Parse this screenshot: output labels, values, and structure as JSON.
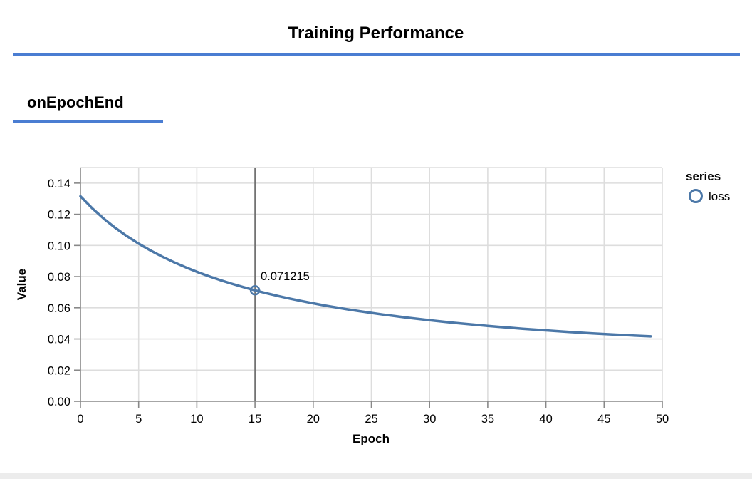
{
  "page": {
    "title": "Training Performance",
    "section_heading": "onEpochEnd"
  },
  "colors": {
    "accent_blue": "#4a7dd2",
    "series_blue": "#4c78a8",
    "grid": "#dddddd",
    "axis": "#888888",
    "hover_rule": "#666666"
  },
  "chart_data": {
    "type": "line",
    "xlabel": "Epoch",
    "ylabel": "Value",
    "xlim": [
      0,
      50
    ],
    "ylim": [
      0,
      0.15
    ],
    "x_ticks": [
      0,
      5,
      10,
      15,
      20,
      25,
      30,
      35,
      40,
      45,
      50
    ],
    "x_tick_labels": [
      "0",
      "5",
      "10",
      "15",
      "20",
      "25",
      "30",
      "35",
      "40",
      "45",
      "50"
    ],
    "y_ticks": [
      0,
      0.02,
      0.04,
      0.06,
      0.08,
      0.1,
      0.12,
      0.14
    ],
    "y_tick_labels": [
      "0.00",
      "0.02",
      "0.04",
      "0.06",
      "0.08",
      "0.10",
      "0.12",
      "0.14"
    ],
    "grid": true,
    "legend_position": "right",
    "legend_title": "series",
    "series": [
      {
        "name": "loss",
        "color": "#4c78a8",
        "x": [
          0,
          1,
          2,
          3,
          4,
          5,
          6,
          7,
          8,
          9,
          10,
          11,
          12,
          13,
          14,
          15,
          16,
          17,
          18,
          19,
          20,
          21,
          22,
          23,
          24,
          25,
          26,
          27,
          28,
          29,
          30,
          31,
          32,
          33,
          34,
          35,
          36,
          37,
          38,
          39,
          40,
          41,
          42,
          43,
          44,
          45,
          46,
          47,
          48,
          49
        ],
        "values": [
          0.131579,
          0.123942,
          0.117218,
          0.111257,
          0.105934,
          0.101154,
          0.09684,
          0.092927,
          0.089361,
          0.0861,
          0.083108,
          0.080353,
          0.077808,
          0.075451,
          0.073263,
          0.071215,
          0.069326,
          0.06755,
          0.065887,
          0.064328,
          0.062862,
          0.061483,
          0.060183,
          0.058956,
          0.057797,
          0.0567,
          0.055662,
          0.054678,
          0.053743,
          0.052856,
          0.052013,
          0.051211,
          0.050447,
          0.04972,
          0.049026,
          0.048365,
          0.047734,
          0.047132,
          0.046557,
          0.046007,
          0.045482,
          0.04498,
          0.0445,
          0.044041,
          0.043602,
          0.043182,
          0.04278,
          0.042395,
          0.042027,
          0.041676
        ]
      }
    ],
    "highlight": {
      "series": "loss",
      "x": 15,
      "value": 0.071215,
      "label": "0.071215"
    }
  }
}
